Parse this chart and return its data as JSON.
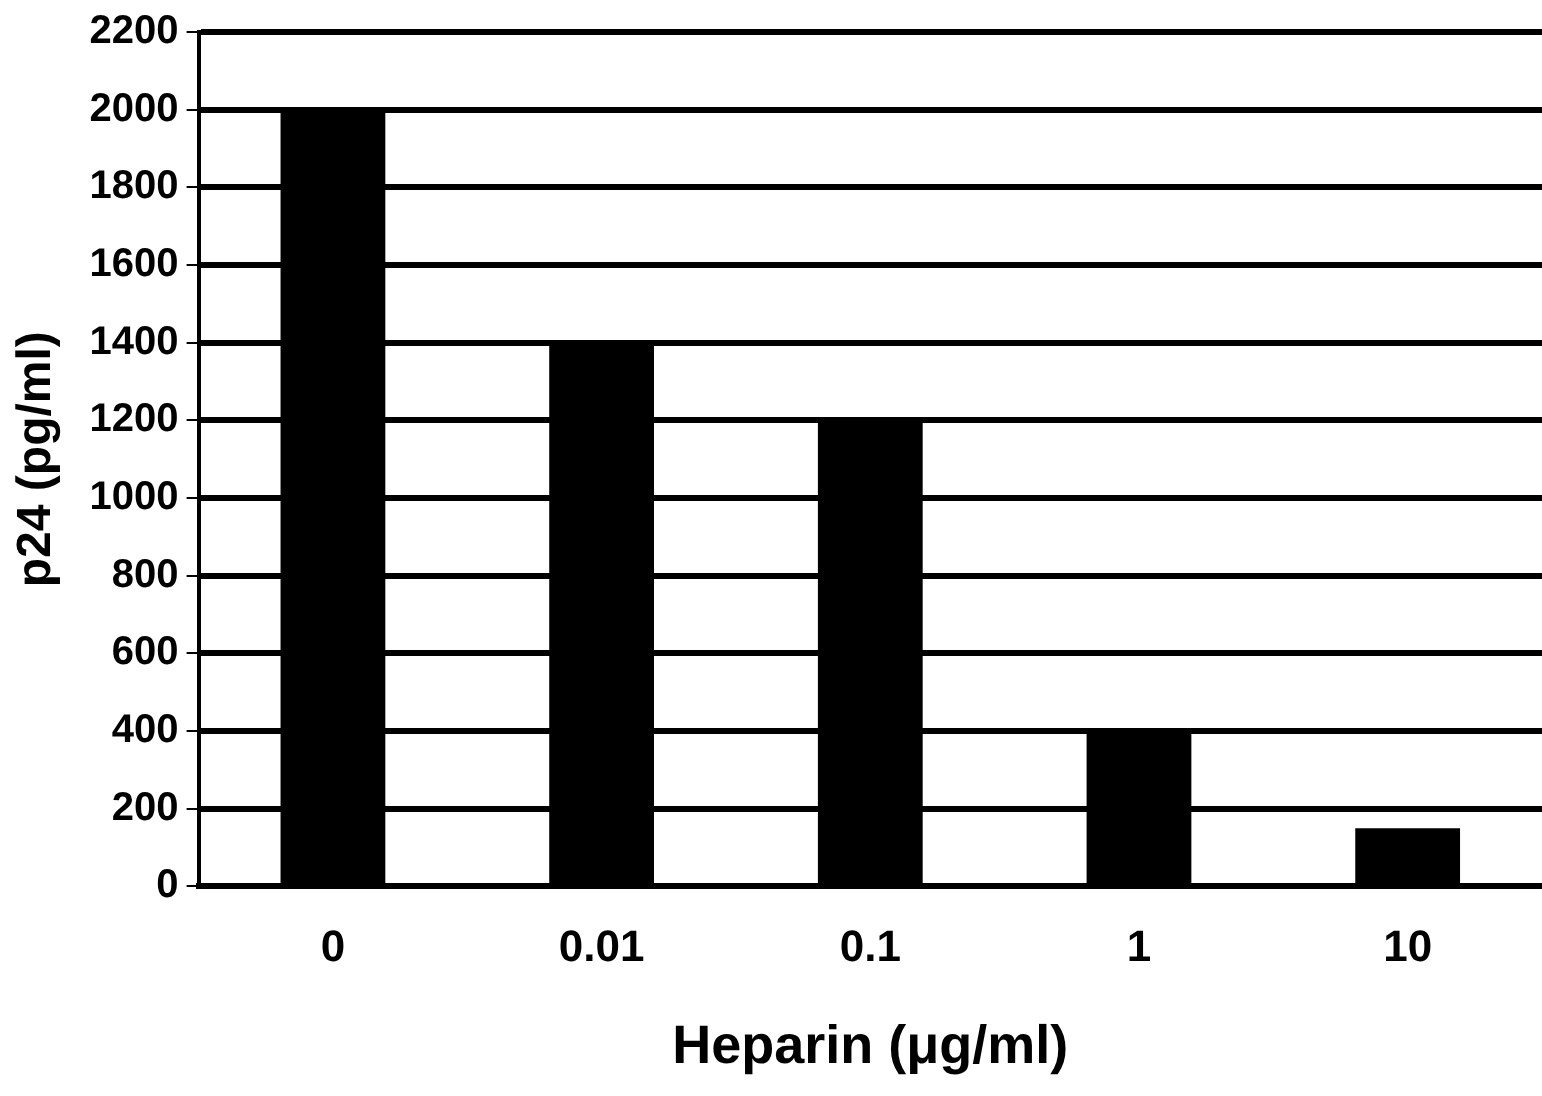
{
  "chart_data": {
    "type": "bar",
    "xlabel": "Heparin (μg/ml)",
    "ylabel": "p24 (pg/ml)",
    "categories": [
      "0",
      "0.01",
      "0.1",
      "1",
      "10"
    ],
    "values": [
      2000,
      1400,
      1200,
      400,
      150
    ],
    "color": "#000000",
    "ylim": [
      0,
      2200
    ],
    "yticks": [
      0,
      200,
      400,
      600,
      800,
      1000,
      1200,
      1400,
      1600,
      1800,
      2000,
      2200
    ],
    "grid": "y",
    "legend": false
  }
}
